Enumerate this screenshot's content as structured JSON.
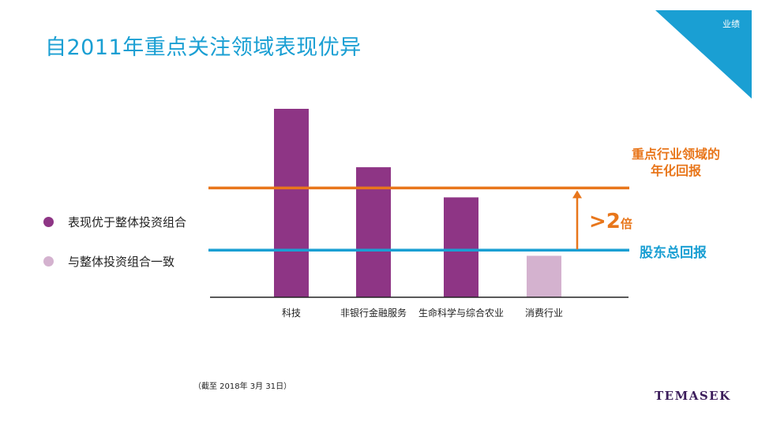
{
  "header": {
    "title": "自2011年重点关注领域表现优异",
    "corner_tag": "业绩"
  },
  "legend": [
    {
      "label": "表现优于整体投资组合",
      "color": "#8e3585"
    },
    {
      "label": "与整体投资组合一致",
      "color": "#d4b2cf"
    }
  ],
  "chart_data": {
    "type": "bar",
    "categories": [
      "科技",
      "非银行金融服务",
      "生命科学与综合农业",
      "消费行业"
    ],
    "values": [
      100,
      69,
      53,
      22
    ],
    "value_scale": "relative (no axis printed)",
    "bar_colors": [
      "#8e3585",
      "#8e3585",
      "#8e3585",
      "#d4b2cf"
    ],
    "reference_lines": [
      {
        "label": "重点行业领域的\n年化回报",
        "value": 58,
        "color": "#e8761b"
      },
      {
        "label": "股东总回报",
        "value": 25,
        "color": "#1a9fd3"
      }
    ],
    "annotation": {
      "prefix": ">2",
      "suffix": "倍",
      "color": "#e8761b"
    },
    "xlabel": "",
    "ylabel": "",
    "grid": false
  },
  "labels": {
    "orange_line_line1": "重点行业领域的",
    "orange_line_line2": "年化回报",
    "blue_line": "股东总回报",
    "multiplier_prefix": ">2",
    "multiplier_suffix": "倍"
  },
  "footnote": "（截至 2018年 3月 31日）",
  "brand": "TEMASEK",
  "colors": {
    "accent_blue": "#1a9fd3",
    "orange": "#e8761b",
    "purple": "#8e3585",
    "light_purple": "#d4b2cf",
    "logo": "#3d1f5c"
  }
}
